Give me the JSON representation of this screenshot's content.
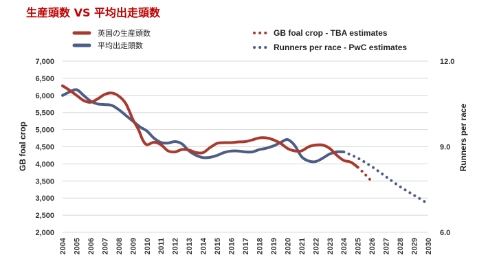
{
  "chart_data": {
    "type": "line",
    "title": "生産頭数 VS 平均出走頭数",
    "xlabel": "",
    "ylabel": "GB foal crop",
    "y2label": "Runners per race",
    "ylim": [
      2000,
      7000
    ],
    "y2lim": [
      6.0,
      12.0
    ],
    "yticks": [
      "7,000",
      "6,500",
      "6,000",
      "5,500",
      "5,000",
      "4,500",
      "4,000",
      "3,500",
      "3,000",
      "2,500",
      "2,000"
    ],
    "y2ticks": [
      "12.0",
      "9.0",
      "6.0"
    ],
    "categories": [
      "2004",
      "2005",
      "2006",
      "2007",
      "2008",
      "2009",
      "2010",
      "2011",
      "2012",
      "2013",
      "2014",
      "2015",
      "2016",
      "2017",
      "2018",
      "2019",
      "2020",
      "2021",
      "2022",
      "2023",
      "2024",
      "2025",
      "2026",
      "2027",
      "2028",
      "2029",
      "2030"
    ],
    "colors": {
      "foal": "#a83a2e",
      "runners": "#4e5d85"
    },
    "series": [
      {
        "name": "英国の生産頭数",
        "axis": "left",
        "style": "solid",
        "x": [
          2004.0,
          2004.5,
          2005.0,
          2005.5,
          2006.0,
          2006.5,
          2007.0,
          2007.5,
          2008.0,
          2008.5,
          2009.0,
          2009.4,
          2009.7,
          2010.0,
          2010.5,
          2011.0,
          2011.5,
          2012.0,
          2012.5,
          2013.0,
          2013.5,
          2014.0,
          2014.5,
          2015.0,
          2015.5,
          2016.0,
          2016.5,
          2017.0,
          2017.5,
          2018.0,
          2018.5,
          2019.0,
          2019.5,
          2020.0,
          2020.5,
          2021.0,
          2021.5,
          2022.0,
          2022.5,
          2023.0,
          2023.5,
          2024.0,
          2024.5,
          2025.0
        ],
        "values": [
          6280,
          6150,
          6000,
          5850,
          5800,
          5900,
          6030,
          6070,
          5980,
          5760,
          5300,
          5000,
          4700,
          4560,
          4630,
          4560,
          4380,
          4350,
          4420,
          4400,
          4330,
          4330,
          4480,
          4600,
          4620,
          4620,
          4640,
          4650,
          4700,
          4760,
          4760,
          4700,
          4600,
          4450,
          4380,
          4380,
          4500,
          4550,
          4550,
          4450,
          4250,
          4100,
          4050,
          3900
        ]
      },
      {
        "name": "平均出走頭数",
        "axis": "right",
        "style": "solid",
        "x": [
          2004.0,
          2004.5,
          2005.0,
          2005.5,
          2006.0,
          2006.5,
          2007.0,
          2007.5,
          2008.0,
          2008.5,
          2009.0,
          2009.5,
          2010.0,
          2010.5,
          2011.0,
          2011.5,
          2012.0,
          2012.5,
          2013.0,
          2013.5,
          2014.0,
          2014.5,
          2015.0,
          2015.5,
          2016.0,
          2016.5,
          2017.0,
          2017.5,
          2018.0,
          2018.5,
          2019.0,
          2019.5,
          2020.0,
          2020.5,
          2021.0,
          2021.5,
          2022.0,
          2022.5,
          2023.0,
          2023.5,
          2024.0
        ],
        "values": [
          10.8,
          10.92,
          11.0,
          10.8,
          10.6,
          10.5,
          10.48,
          10.45,
          10.3,
          10.1,
          9.9,
          9.7,
          9.55,
          9.3,
          9.15,
          9.13,
          9.18,
          9.1,
          8.85,
          8.7,
          8.62,
          8.63,
          8.7,
          8.8,
          8.85,
          8.85,
          8.82,
          8.82,
          8.9,
          8.95,
          9.03,
          9.15,
          9.25,
          9.05,
          8.65,
          8.5,
          8.48,
          8.6,
          8.75,
          8.82,
          8.82
        ]
      },
      {
        "name": "GB foal crop - TBA estimates",
        "axis": "left",
        "style": "dotted",
        "x": [
          2025.0,
          2025.5,
          2026.0
        ],
        "values": [
          3900,
          3700,
          3480
        ]
      },
      {
        "name": "Runners per race - PwC estimates",
        "axis": "right",
        "style": "dotted",
        "x": [
          2024.0,
          2025.0,
          2026.0,
          2027.0,
          2028.0,
          2029.0,
          2030.0
        ],
        "values": [
          8.82,
          8.6,
          8.3,
          7.95,
          7.6,
          7.3,
          7.0
        ]
      }
    ]
  }
}
